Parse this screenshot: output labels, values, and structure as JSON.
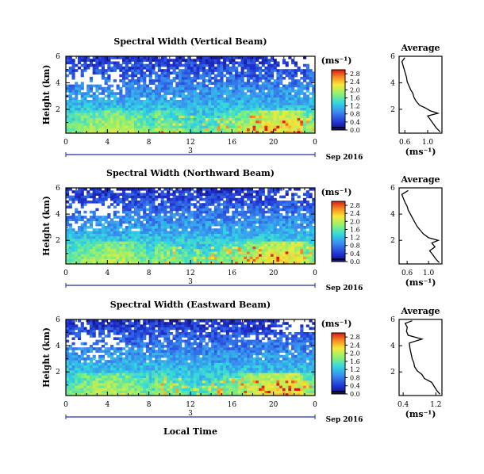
{
  "figure": {
    "xlabel": "Local Time",
    "date_label": "Sep 2016"
  },
  "chart_data": [
    {
      "type": "heatmap",
      "title": "Spectral Width (Vertical Beam)",
      "ylabel": "Height (km)",
      "x_ticks": [
        "0",
        "4",
        "8",
        "12",
        "16",
        "20",
        "0"
      ],
      "xlim": [
        0,
        24
      ],
      "day_label": "3",
      "y_ticks": [
        "6",
        "4",
        "2"
      ],
      "ylim": [
        0.2,
        6
      ],
      "colorbar": {
        "unit": "(ms⁻¹)",
        "ticks": [
          "0.0",
          "0.4",
          "0.8",
          "1.2",
          "1.6",
          "2.0",
          "2.4",
          "2.8"
        ],
        "range": [
          0,
          3.0
        ]
      },
      "profile": {
        "title": "Average",
        "xlabel": "(ms⁻¹)",
        "x_ticks": [
          "0.6",
          "1.0"
        ],
        "xlim": [
          0.5,
          1.25
        ],
        "y_ticks": [
          "6",
          "4",
          "2"
        ],
        "ylim": [
          0.2,
          6
        ],
        "heights": [
          0.3,
          0.6,
          0.9,
          1.2,
          1.5,
          1.7,
          1.9,
          2.1,
          2.3,
          2.6,
          2.9,
          3.2,
          3.5,
          3.8,
          4.1,
          4.4,
          4.7,
          5.0,
          5.3,
          5.6,
          5.9
        ],
        "values": [
          1.22,
          1.15,
          1.1,
          1.05,
          1.0,
          1.18,
          1.04,
          0.96,
          0.86,
          0.8,
          0.76,
          0.74,
          0.7,
          0.67,
          0.64,
          0.63,
          0.61,
          0.59,
          0.57,
          0.55,
          0.6
        ]
      }
    },
    {
      "type": "heatmap",
      "title": "Spectral Width (Northward Beam)",
      "ylabel": "Height (km)",
      "x_ticks": [
        "0",
        "4",
        "8",
        "12",
        "16",
        "20",
        "0"
      ],
      "xlim": [
        0,
        24
      ],
      "day_label": "3",
      "y_ticks": [
        "6",
        "4",
        "2"
      ],
      "ylim": [
        0.2,
        6
      ],
      "colorbar": {
        "unit": "(ms⁻¹)",
        "ticks": [
          "0.0",
          "0.4",
          "0.8",
          "1.2",
          "1.6",
          "2.0",
          "2.4",
          "2.8"
        ],
        "range": [
          0,
          3.0
        ]
      },
      "profile": {
        "title": "Average",
        "xlabel": "(ms⁻¹)",
        "x_ticks": [
          "0.6",
          "1.0"
        ],
        "xlim": [
          0.45,
          1.25
        ],
        "y_ticks": [
          "6",
          "4",
          "2"
        ],
        "ylim": [
          0.2,
          6
        ],
        "heights": [
          0.3,
          0.6,
          0.9,
          1.2,
          1.5,
          1.8,
          2.0,
          2.2,
          2.5,
          2.8,
          3.1,
          3.4,
          3.7,
          4.0,
          4.3,
          4.6,
          4.9,
          5.2,
          5.5,
          5.8
        ],
        "values": [
          1.2,
          1.13,
          1.08,
          1.02,
          1.12,
          1.06,
          1.18,
          1.0,
          0.9,
          0.84,
          0.78,
          0.74,
          0.7,
          0.66,
          0.62,
          0.6,
          0.56,
          0.53,
          0.5,
          0.62
        ]
      }
    },
    {
      "type": "heatmap",
      "title": "Spectral Width (Eastward Beam)",
      "ylabel": "Height (km)",
      "x_ticks": [
        "0",
        "4",
        "8",
        "12",
        "16",
        "20",
        "0"
      ],
      "xlim": [
        0,
        24
      ],
      "day_label": "3",
      "y_ticks": [
        "6",
        "4",
        "2"
      ],
      "ylim": [
        0.2,
        6
      ],
      "colorbar": {
        "unit": "(ms⁻¹)",
        "ticks": [
          "0.0",
          "0.4",
          "0.8",
          "1.2",
          "1.6",
          "2.0",
          "2.4",
          "2.8"
        ],
        "range": [
          0,
          3.0
        ]
      },
      "profile": {
        "title": "Average",
        "xlabel": "(ms⁻¹)",
        "x_ticks": [
          "0.4",
          "1.2"
        ],
        "xlim": [
          0.3,
          1.35
        ],
        "y_ticks": [
          "6",
          "4",
          "2"
        ],
        "ylim": [
          0.2,
          6
        ],
        "heights": [
          0.3,
          0.6,
          0.9,
          1.2,
          1.5,
          1.8,
          2.1,
          2.4,
          2.7,
          3.0,
          3.3,
          3.6,
          3.9,
          4.2,
          4.5,
          4.8,
          5.1,
          5.4,
          5.7,
          5.9
        ],
        "values": [
          1.3,
          1.22,
          1.16,
          1.1,
          0.92,
          0.86,
          0.74,
          0.68,
          0.66,
          0.62,
          0.6,
          0.58,
          0.56,
          0.55,
          0.86,
          0.52,
          0.48,
          0.5,
          0.45,
          0.62
        ]
      }
    }
  ]
}
